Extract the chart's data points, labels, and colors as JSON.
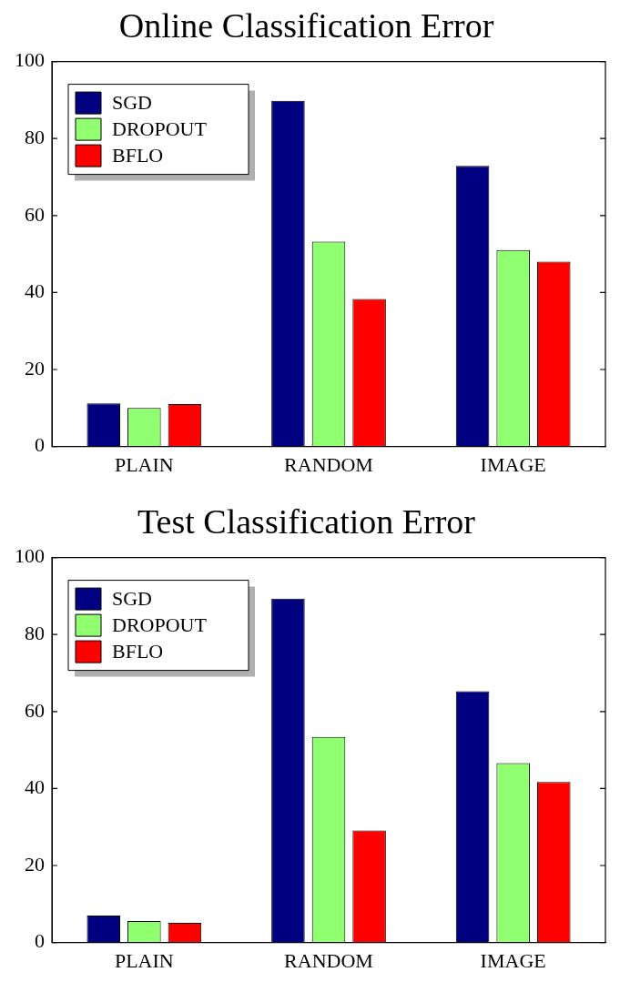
{
  "chart_data": [
    {
      "type": "bar",
      "title": "Online Classification Error",
      "categories": [
        "PLAIN",
        "RANDOM",
        "IMAGE"
      ],
      "series": [
        {
          "name": "SGD",
          "color": "#000080",
          "values": [
            11.2,
            89.8,
            72.9
          ]
        },
        {
          "name": "DROPOUT",
          "color": "#90ff70",
          "values": [
            10.0,
            53.2,
            51.0
          ]
        },
        {
          "name": "BFLO",
          "color": "#ff0000",
          "values": [
            11.0,
            38.3,
            48.0
          ]
        }
      ],
      "ylim": [
        0,
        100
      ],
      "yticks": [
        0,
        20,
        40,
        60,
        80,
        100
      ],
      "grid": false,
      "legend": "top left"
    },
    {
      "type": "bar",
      "title": "Test Classification Error",
      "categories": [
        "PLAIN",
        "RANDOM",
        "IMAGE"
      ],
      "series": [
        {
          "name": "SGD",
          "color": "#000080",
          "values": [
            7.0,
            89.3,
            65.3
          ]
        },
        {
          "name": "DROPOUT",
          "color": "#90ff70",
          "values": [
            5.6,
            53.4,
            46.6
          ]
        },
        {
          "name": "BFLO",
          "color": "#ff0000",
          "values": [
            5.1,
            29.1,
            41.7
          ]
        }
      ],
      "ylim": [
        0,
        100
      ],
      "yticks": [
        0,
        20,
        40,
        60,
        80,
        100
      ],
      "grid": false,
      "legend": "top left"
    }
  ]
}
